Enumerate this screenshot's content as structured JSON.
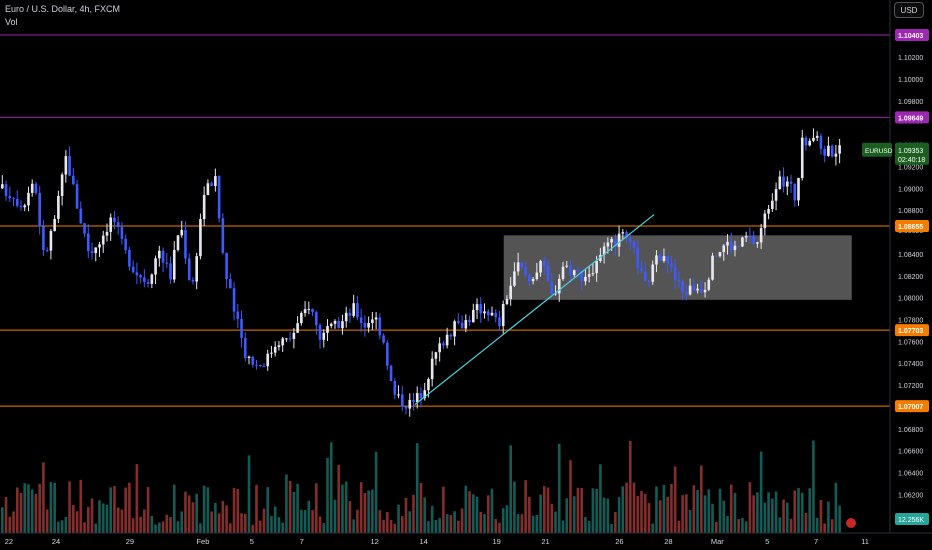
{
  "header": {
    "symbol_title": "Euro / U.S. Dollar, 4h, FXCM",
    "volume_label": "Vol",
    "currency_button": "USD"
  },
  "chart_data": {
    "type": "candlestick",
    "symbol": "EURUSD",
    "interval": "4h",
    "ylim": [
      1.0584,
      1.1102
    ],
    "y_ticks": [
      1.102,
      1.1,
      1.098,
      1.0962,
      1.094,
      1.092,
      1.09,
      1.088,
      1.0862,
      1.084,
      1.082,
      1.08,
      1.078,
      1.076,
      1.074,
      1.072,
      1.07,
      1.068,
      1.066,
      1.064,
      1.062,
      1.06
    ],
    "x_ticks": [
      "22",
      "24",
      "29",
      "Feb",
      "5",
      "7",
      "12",
      "14",
      "19",
      "21",
      "26",
      "28",
      "Mar",
      "5",
      "7",
      "11"
    ],
    "price_levels": [
      {
        "price": 1.10403,
        "label": "1.10403",
        "color": "#9c27b0"
      },
      {
        "price": 1.09649,
        "label": "1.09649",
        "color": "#9c27b0"
      },
      {
        "price": 1.08655,
        "label": "1.08655",
        "color": "#f57c00"
      },
      {
        "price": 1.07703,
        "label": "1.07703",
        "color": "#f57c00"
      },
      {
        "price": 1.07007,
        "label": "1.07007",
        "color": "#f57c00"
      }
    ],
    "last_price": {
      "symbol": "EURUSD",
      "value": "1.09353",
      "countdown": "02:40:18",
      "color": "#1b5e20"
    },
    "volume_badge": {
      "value": "12.256K",
      "color": "#26a69a"
    },
    "range_box": {
      "x_from": 0.566,
      "x_to": 0.957,
      "price_top": 1.0857,
      "price_bottom": 1.0798
    },
    "trendline": {
      "x_from": 0.466,
      "price_from": 1.0702,
      "x_to": 0.735,
      "price_to": 1.0876
    },
    "anchors": [
      [
        0.0,
        1.09
      ],
      [
        0.012,
        1.0895
      ],
      [
        0.025,
        1.0885
      ],
      [
        0.038,
        1.091
      ],
      [
        0.049,
        1.0835
      ],
      [
        0.062,
        1.0875
      ],
      [
        0.074,
        1.093
      ],
      [
        0.086,
        1.0885
      ],
      [
        0.1,
        1.084
      ],
      [
        0.113,
        1.0855
      ],
      [
        0.126,
        1.0875
      ],
      [
        0.138,
        1.0845
      ],
      [
        0.151,
        1.0825
      ],
      [
        0.165,
        1.0815
      ],
      [
        0.178,
        1.0845
      ],
      [
        0.191,
        1.082
      ],
      [
        0.202,
        1.087
      ],
      [
        0.215,
        1.0805
      ],
      [
        0.228,
        1.0895
      ],
      [
        0.241,
        1.091
      ],
      [
        0.252,
        1.0825
      ],
      [
        0.265,
        1.078
      ],
      [
        0.276,
        1.0748
      ],
      [
        0.289,
        1.0738
      ],
      [
        0.3,
        1.0745
      ],
      [
        0.311,
        1.0762
      ],
      [
        0.323,
        1.076
      ],
      [
        0.334,
        1.0775
      ],
      [
        0.347,
        1.0795
      ],
      [
        0.359,
        1.0765
      ],
      [
        0.371,
        1.077
      ],
      [
        0.384,
        1.0778
      ],
      [
        0.397,
        1.079
      ],
      [
        0.409,
        1.0775
      ],
      [
        0.42,
        1.0785
      ],
      [
        0.431,
        1.076
      ],
      [
        0.441,
        1.0712
      ],
      [
        0.452,
        1.0705
      ],
      [
        0.463,
        1.0703
      ],
      [
        0.474,
        1.0715
      ],
      [
        0.487,
        1.0745
      ],
      [
        0.5,
        1.0765
      ],
      [
        0.513,
        1.0775
      ],
      [
        0.525,
        1.078
      ],
      [
        0.536,
        1.079
      ],
      [
        0.547,
        1.079
      ],
      [
        0.56,
        1.0775
      ],
      [
        0.57,
        1.0805
      ],
      [
        0.582,
        1.083
      ],
      [
        0.595,
        1.0815
      ],
      [
        0.607,
        1.0835
      ],
      [
        0.62,
        1.08
      ],
      [
        0.632,
        1.083
      ],
      [
        0.643,
        1.0825
      ],
      [
        0.655,
        1.082
      ],
      [
        0.666,
        1.0825
      ],
      [
        0.677,
        1.084
      ],
      [
        0.688,
        1.085
      ],
      [
        0.7,
        1.0855
      ],
      [
        0.713,
        1.084
      ],
      [
        0.724,
        1.081
      ],
      [
        0.735,
        1.083
      ],
      [
        0.745,
        1.0845
      ],
      [
        0.756,
        1.082
      ],
      [
        0.767,
        1.0805
      ],
      [
        0.779,
        1.081
      ],
      [
        0.791,
        1.081
      ],
      [
        0.803,
        1.084
      ],
      [
        0.815,
        1.085
      ],
      [
        0.827,
        1.0845
      ],
      [
        0.838,
        1.0855
      ],
      [
        0.85,
        1.085
      ],
      [
        0.861,
        1.088
      ],
      [
        0.872,
        1.0905
      ],
      [
        0.885,
        1.0905
      ],
      [
        0.894,
        1.089
      ],
      [
        0.9,
        1.094
      ],
      [
        0.912,
        1.095
      ],
      [
        0.924,
        1.0935
      ]
    ]
  }
}
